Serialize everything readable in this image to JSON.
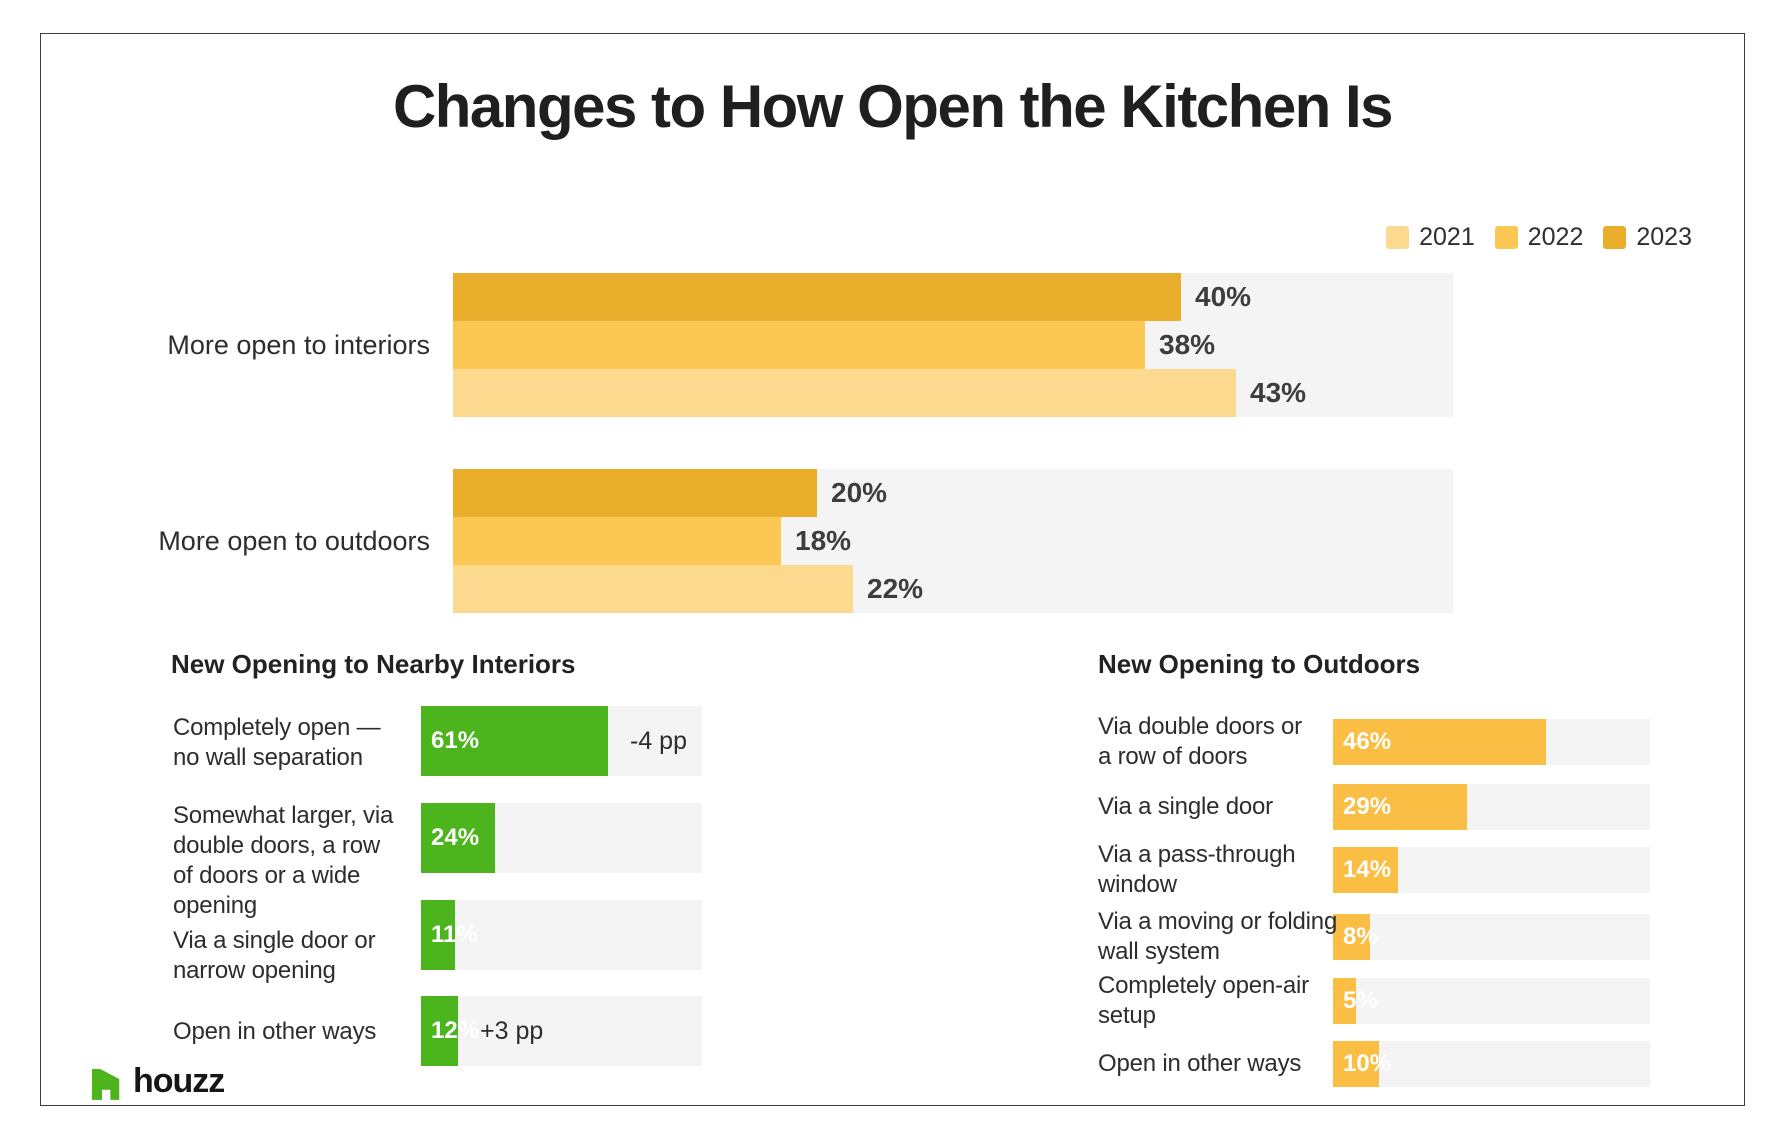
{
  "title": "Changes to How Open the Kitchen Is",
  "legend": {
    "items": [
      {
        "label": "2021",
        "color": "#FBD98F"
      },
      {
        "label": "2022",
        "color": "#FCC853"
      },
      {
        "label": "2023",
        "color": "#E9AE2B"
      }
    ]
  },
  "colors": {
    "year_2021": "#FBD98F",
    "year_2022": "#FCC853",
    "year_2023": "#E9AE2B",
    "green": "#4CB41C",
    "orange": "#FBBE45",
    "track_gray": "#F4F4F5",
    "text_dark": "#2D2D2D",
    "title_dark": "#1F1F1F"
  },
  "main_chart": {
    "groups": [
      {
        "label": "More open to interiors",
        "bars": [
          {
            "year": "2023",
            "value": 40,
            "display": "40%"
          },
          {
            "year": "2022",
            "value": 38,
            "display": "38%"
          },
          {
            "year": "2021",
            "value": 43,
            "display": "43%"
          }
        ]
      },
      {
        "label": "More open to outdoors",
        "bars": [
          {
            "year": "2023",
            "value": 20,
            "display": "20%"
          },
          {
            "year": "2022",
            "value": 18,
            "display": "18%"
          },
          {
            "year": "2021",
            "value": 22,
            "display": "22%"
          }
        ]
      }
    ]
  },
  "interiors_chart": {
    "heading": "New Opening to Nearby Interiors",
    "bar_color": "#4CB41C",
    "rows": [
      {
        "label_lines": [
          "Completely open —",
          "no wall separation"
        ],
        "value": 61,
        "display": "61%",
        "annotation": "-4 pp"
      },
      {
        "label_lines": [
          "Somewhat larger, via",
          "double doors, a row",
          "of doors or a wide",
          "opening"
        ],
        "value": 24,
        "display": "24%",
        "annotation": ""
      },
      {
        "label_lines": [
          "Via a single door or",
          "narrow opening"
        ],
        "value": 11,
        "display": "11%",
        "annotation": ""
      },
      {
        "label_lines": [
          "Open in other ways"
        ],
        "value": 12,
        "display": "12%",
        "annotation": "+3 pp"
      }
    ]
  },
  "outdoors_chart": {
    "heading": "New Opening to Outdoors",
    "bar_color": "#FBBE45",
    "rows": [
      {
        "label_lines": [
          "Via double doors or",
          "a row of doors"
        ],
        "value": 46,
        "display": "46%",
        "annotation": ""
      },
      {
        "label_lines": [
          "Via a single door"
        ],
        "value": 29,
        "display": "29%",
        "annotation": ""
      },
      {
        "label_lines": [
          "Via a pass-through",
          "window"
        ],
        "value": 14,
        "display": "14%",
        "annotation": ""
      },
      {
        "label_lines": [
          "Via a moving or folding",
          "wall system"
        ],
        "value": 8,
        "display": "8%",
        "annotation": ""
      },
      {
        "label_lines": [
          "Completely open-air",
          "setup"
        ],
        "value": 5,
        "display": "5%",
        "annotation": ""
      },
      {
        "label_lines": [
          "Open in other ways"
        ],
        "value": 10,
        "display": "10%",
        "annotation": ""
      }
    ]
  },
  "logo": {
    "text": "houzz"
  },
  "chart_data": [
    {
      "type": "bar",
      "orientation": "horizontal",
      "title": "Changes to How Open the Kitchen Is",
      "categories": [
        "More open to interiors",
        "More open to outdoors"
      ],
      "series": [
        {
          "name": "2021",
          "values": [
            43,
            22
          ]
        },
        {
          "name": "2022",
          "values": [
            38,
            18
          ]
        },
        {
          "name": "2023",
          "values": [
            40,
            20
          ]
        }
      ],
      "unit": "%",
      "xlim": [
        0,
        55
      ],
      "legend_position": "top-right",
      "grid": false
    },
    {
      "type": "bar",
      "orientation": "horizontal",
      "title": "New Opening to Nearby Interiors",
      "categories": [
        "Completely open — no wall separation",
        "Somewhat larger, via double doors, a row of doors or a wide opening",
        "Via a single door or narrow opening",
        "Open in other ways"
      ],
      "values": [
        61,
        24,
        11,
        12
      ],
      "annotations": [
        "-4 pp",
        "",
        "",
        "+3 pp"
      ],
      "unit": "%",
      "xlim": [
        0,
        91
      ],
      "grid": false
    },
    {
      "type": "bar",
      "orientation": "horizontal",
      "title": "New Opening to Outdoors",
      "categories": [
        "Via double doors or a row of doors",
        "Via a single door",
        "Via a pass-through window",
        "Via a moving or folding wall system",
        "Completely open-air setup",
        "Open in other ways"
      ],
      "values": [
        46,
        29,
        14,
        8,
        5,
        10
      ],
      "unit": "%",
      "xlim": [
        0,
        68
      ],
      "grid": false
    }
  ]
}
